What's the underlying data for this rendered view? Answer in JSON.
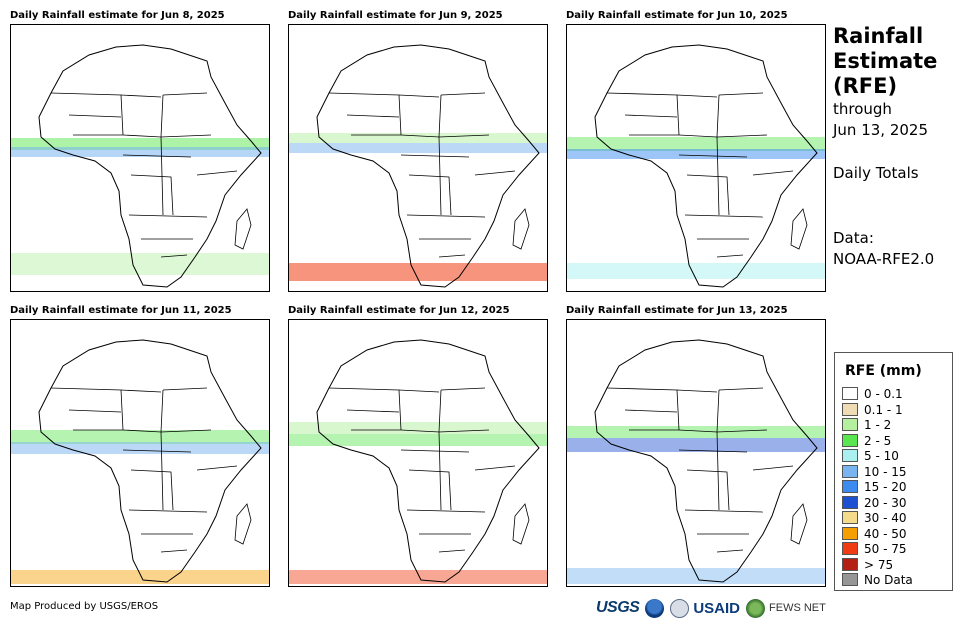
{
  "panels": [
    {
      "title": "Daily Rainfall estimate for Jun 8, 2025"
    },
    {
      "title": "Daily Rainfall estimate for Jun 9, 2025"
    },
    {
      "title": "Daily Rainfall estimate for Jun 10, 2025"
    },
    {
      "title": "Daily Rainfall estimate for Jun 11, 2025"
    },
    {
      "title": "Daily Rainfall estimate for Jun 12, 2025"
    },
    {
      "title": "Daily Rainfall estimate for Jun 13, 2025"
    }
  ],
  "info": {
    "title_1": "Rainfall",
    "title_2": "Estimate",
    "title_3": "(RFE)",
    "through": "through",
    "date": "Jun 13, 2025",
    "totals": "Daily Totals",
    "data_label": "Data:",
    "data_source": "NOAA-RFE2.0"
  },
  "legend": {
    "title": "RFE (mm)",
    "items": [
      {
        "label": "0 - 0.1",
        "color": "#ffffff"
      },
      {
        "label": "0.1 - 1",
        "color": "#f0dcb4"
      },
      {
        "label": "1 - 2",
        "color": "#b4f0a0"
      },
      {
        "label": "2 - 5",
        "color": "#5ae650"
      },
      {
        "label": "5 - 10",
        "color": "#aaf0f0"
      },
      {
        "label": "10 - 15",
        "color": "#78b4f0"
      },
      {
        "label": "15 - 20",
        "color": "#3c8cf0"
      },
      {
        "label": "20 - 30",
        "color": "#1e50d2"
      },
      {
        "label": "30 - 40",
        "color": "#f5dc8c"
      },
      {
        "label": "40 - 50",
        "color": "#f5a000"
      },
      {
        "label": "50 - 75",
        "color": "#f03c14"
      },
      {
        "label": "> 75",
        "color": "#b41e14"
      },
      {
        "label": "No Data",
        "color": "#969696"
      }
    ]
  },
  "footer": {
    "credit": "Map Produced by USGS/EROS",
    "usgs": "USGS",
    "usaid": "USAID",
    "fews": "FEWS NET"
  }
}
